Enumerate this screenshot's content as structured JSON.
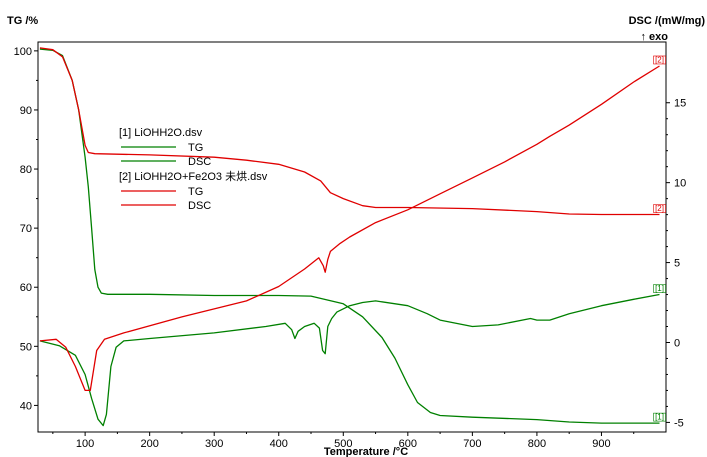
{
  "chart_data": {
    "type": "line",
    "xlabel": "Temperature /°C",
    "ylabel_left": "TG /%",
    "ylabel_right": "DSC /(mW/mg)",
    "exo_label": "↑ exo",
    "xlim": [
      27,
      1000
    ],
    "ylim_left": [
      35.5,
      101.5
    ],
    "ylim_right": [
      -5.6,
      18.8
    ],
    "x_ticks": [
      "100",
      "200",
      "300",
      "400",
      "500",
      "600",
      "700",
      "800",
      "900"
    ],
    "y_left_ticks": [
      "100",
      "90",
      "80",
      "70",
      "60",
      "50",
      "40"
    ],
    "y_right_ticks": [
      "15",
      "10",
      "5",
      "0",
      "-5"
    ],
    "legend": [
      {
        "file": "[1] LiOHH2O.dsv",
        "entries": [
          {
            "label": "TG",
            "color": "#008000"
          },
          {
            "label": "DSC",
            "color": "#008000"
          }
        ]
      },
      {
        "file": "[2] LiOHH2O+Fe2O3 未烘.dsv",
        "entries": [
          {
            "label": "TG",
            "color": "#e00000"
          },
          {
            "label": "DSC",
            "color": "#e00000"
          }
        ]
      }
    ],
    "series": [
      {
        "name": "TG",
        "file": "[1] LiOHH2O.dsv",
        "axis": "left",
        "color": "#008000",
        "end_marker": "[1]",
        "points": [
          [
            30,
            100.3
          ],
          [
            50,
            100.1
          ],
          [
            65,
            99.2
          ],
          [
            80,
            95.0
          ],
          [
            90,
            90.0
          ],
          [
            100,
            82.0
          ],
          [
            105,
            77.0
          ],
          [
            110,
            70.0
          ],
          [
            115,
            63.0
          ],
          [
            120,
            60.0
          ],
          [
            125,
            59.0
          ],
          [
            135,
            58.8
          ],
          [
            200,
            58.8
          ],
          [
            300,
            58.6
          ],
          [
            400,
            58.6
          ],
          [
            450,
            58.5
          ],
          [
            500,
            57.2
          ],
          [
            530,
            55.0
          ],
          [
            560,
            51.5
          ],
          [
            580,
            48.0
          ],
          [
            600,
            43.5
          ],
          [
            615,
            40.5
          ],
          [
            635,
            38.8
          ],
          [
            650,
            38.3
          ],
          [
            700,
            38.0
          ],
          [
            800,
            37.6
          ],
          [
            850,
            37.2
          ],
          [
            900,
            37.0
          ],
          [
            990,
            37.0
          ]
        ]
      },
      {
        "name": "DSC",
        "file": "[1] LiOHH2O.dsv",
        "axis": "right",
        "color": "#008000",
        "end_marker": "[1]",
        "points": [
          [
            30,
            0.1
          ],
          [
            60,
            -0.2
          ],
          [
            85,
            -0.8
          ],
          [
            100,
            -2.0
          ],
          [
            110,
            -3.5
          ],
          [
            120,
            -4.8
          ],
          [
            128,
            -5.2
          ],
          [
            133,
            -4.5
          ],
          [
            140,
            -1.5
          ],
          [
            148,
            -0.3
          ],
          [
            160,
            0.1
          ],
          [
            200,
            0.25
          ],
          [
            300,
            0.6
          ],
          [
            380,
            1.0
          ],
          [
            410,
            1.2
          ],
          [
            420,
            0.8
          ],
          [
            425,
            0.25
          ],
          [
            430,
            0.7
          ],
          [
            440,
            1.0
          ],
          [
            455,
            1.2
          ],
          [
            463,
            0.9
          ],
          [
            468,
            -0.5
          ],
          [
            472,
            -0.7
          ],
          [
            476,
            1.0
          ],
          [
            482,
            1.5
          ],
          [
            490,
            1.9
          ],
          [
            510,
            2.3
          ],
          [
            530,
            2.5
          ],
          [
            550,
            2.6
          ],
          [
            600,
            2.3
          ],
          [
            630,
            1.8
          ],
          [
            650,
            1.4
          ],
          [
            700,
            1.0
          ],
          [
            740,
            1.1
          ],
          [
            790,
            1.5
          ],
          [
            800,
            1.4
          ],
          [
            820,
            1.4
          ],
          [
            850,
            1.8
          ],
          [
            900,
            2.3
          ],
          [
            950,
            2.7
          ],
          [
            990,
            3.0
          ]
        ]
      },
      {
        "name": "TG",
        "file": "[2] LiOHH2O+Fe2O3 未烘.dsv",
        "axis": "left",
        "color": "#e00000",
        "end_marker": "[2]",
        "points": [
          [
            30,
            100.5
          ],
          [
            50,
            100.2
          ],
          [
            65,
            99.0
          ],
          [
            80,
            95.0
          ],
          [
            90,
            90.0
          ],
          [
            100,
            84.0
          ],
          [
            105,
            82.8
          ],
          [
            115,
            82.6
          ],
          [
            200,
            82.4
          ],
          [
            300,
            82.0
          ],
          [
            350,
            81.5
          ],
          [
            400,
            80.8
          ],
          [
            440,
            79.5
          ],
          [
            465,
            78.0
          ],
          [
            480,
            76.0
          ],
          [
            500,
            75.0
          ],
          [
            530,
            73.8
          ],
          [
            550,
            73.5
          ],
          [
            600,
            73.5
          ],
          [
            700,
            73.3
          ],
          [
            800,
            72.8
          ],
          [
            850,
            72.4
          ],
          [
            900,
            72.3
          ],
          [
            990,
            72.3
          ]
        ]
      },
      {
        "name": "DSC",
        "file": "[2] LiOHH2O+Fe2O3 未烘.dsv",
        "axis": "right",
        "color": "#e00000",
        "end_marker": "[2]",
        "points": [
          [
            30,
            0.1
          ],
          [
            55,
            0.2
          ],
          [
            70,
            -0.3
          ],
          [
            85,
            -1.5
          ],
          [
            100,
            -3.0
          ],
          [
            108,
            -3.0
          ],
          [
            118,
            -0.5
          ],
          [
            130,
            0.2
          ],
          [
            160,
            0.6
          ],
          [
            250,
            1.6
          ],
          [
            350,
            2.6
          ],
          [
            400,
            3.5
          ],
          [
            440,
            4.6
          ],
          [
            462,
            5.3
          ],
          [
            469,
            4.8
          ],
          [
            472,
            4.4
          ],
          [
            476,
            5.2
          ],
          [
            480,
            5.7
          ],
          [
            495,
            6.2
          ],
          [
            510,
            6.6
          ],
          [
            550,
            7.5
          ],
          [
            600,
            8.3
          ],
          [
            650,
            9.3
          ],
          [
            700,
            10.3
          ],
          [
            750,
            11.3
          ],
          [
            800,
            12.4
          ],
          [
            820,
            12.9
          ],
          [
            850,
            13.6
          ],
          [
            900,
            14.9
          ],
          [
            950,
            16.3
          ],
          [
            990,
            17.3
          ]
        ]
      }
    ]
  }
}
